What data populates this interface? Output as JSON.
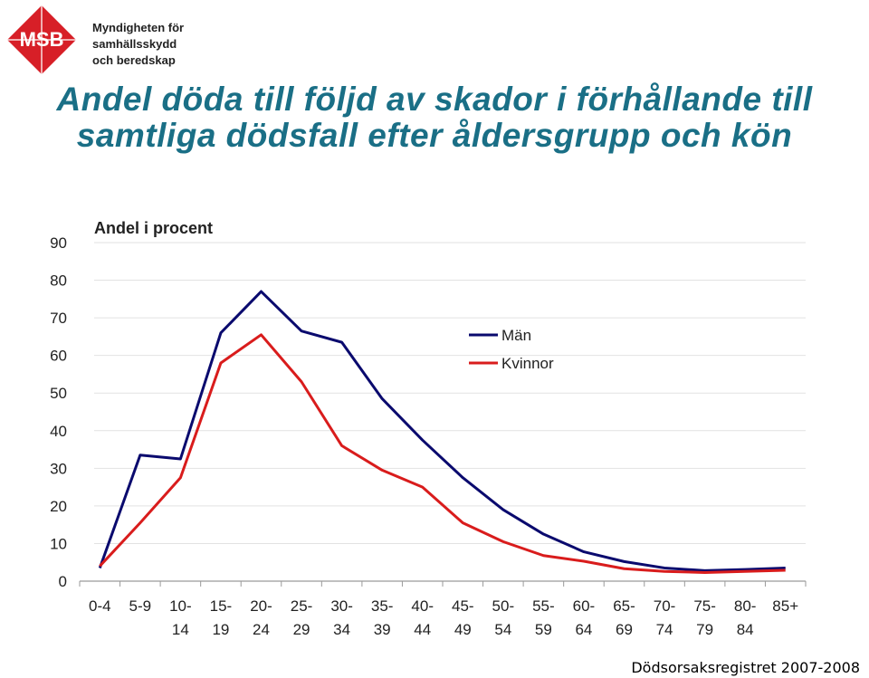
{
  "logo": {
    "text": "MSB",
    "org_lines": [
      "Myndigheten för",
      "samhällsskydd",
      "och beredskap"
    ],
    "color": "#d71f27"
  },
  "title_lines": [
    "Andel döda till följd av skador i förhållande till",
    "samtliga dödsfall efter åldersgrupp och kön"
  ],
  "source": "Dödsorsaksregistret 2007-2008",
  "chart_data": {
    "type": "line",
    "ylabel": "Andel i procent",
    "ylim": [
      0,
      90
    ],
    "yticks": [
      0,
      10,
      20,
      30,
      40,
      50,
      60,
      70,
      80,
      90
    ],
    "categories": [
      [
        "0-4"
      ],
      [
        "5-9"
      ],
      [
        "10-",
        "14"
      ],
      [
        "15-",
        "19"
      ],
      [
        "20-",
        "24"
      ],
      [
        "25-",
        "29"
      ],
      [
        "30-",
        "34"
      ],
      [
        "35-",
        "39"
      ],
      [
        "40-",
        "44"
      ],
      [
        "45-",
        "49"
      ],
      [
        "50-",
        "54"
      ],
      [
        "55-",
        "59"
      ],
      [
        "60-",
        "64"
      ],
      [
        "65-",
        "69"
      ],
      [
        "70-",
        "74"
      ],
      [
        "75-",
        "79"
      ],
      [
        "80-",
        "84"
      ],
      [
        "85+"
      ]
    ],
    "grid": true,
    "legend_position": "right, mid-upper",
    "series": [
      {
        "name": "Män",
        "color": "#0a0a6e",
        "values": [
          3.5,
          33.5,
          32.5,
          66,
          77,
          66.5,
          63.5,
          48.5,
          37.5,
          27.5,
          19,
          12.5,
          7.8,
          5.2,
          3.5,
          2.8,
          3.1,
          3.5
        ]
      },
      {
        "name": "Kvinnor",
        "color": "#d91c1c",
        "values": [
          4.0,
          15.5,
          27.5,
          58,
          65.5,
          53,
          36,
          29.5,
          25,
          15.5,
          10.5,
          6.8,
          5.3,
          3.3,
          2.6,
          2.3,
          2.6,
          2.9
        ]
      }
    ]
  }
}
